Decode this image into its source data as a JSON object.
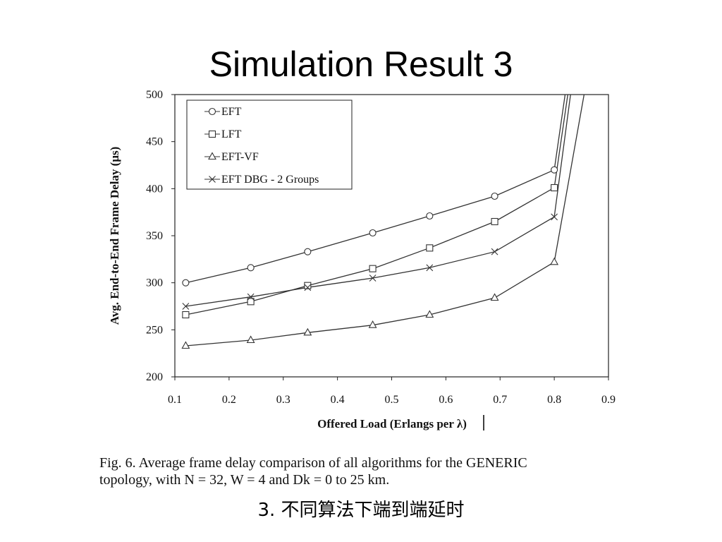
{
  "slide": {
    "title": "Simulation Result 3",
    "subtitle": "3. 不同算法下端到端延时"
  },
  "caption": {
    "line1": "Fig. 6.   Average frame delay comparison of all algorithms for the GENERIC",
    "line2": "topology, with N = 32, W = 4 and Dk = 0 to 25 km."
  },
  "chart_data": {
    "type": "line",
    "title": "",
    "xlabel": "Offered Load (Erlangs per λ)",
    "ylabel": "Avg. End-to-End Frame Delay (μs)",
    "xlim": [
      0.1,
      0.9
    ],
    "ylim": [
      200,
      500
    ],
    "xticks": [
      "0.1",
      "0.2",
      "0.3",
      "0.4",
      "0.5",
      "0.6",
      "0.7",
      "0.8",
      "0.9"
    ],
    "yticks": [
      "200",
      "250",
      "300",
      "350",
      "400",
      "450",
      "500"
    ],
    "grid": false,
    "legend_position": "top-left",
    "series": [
      {
        "name": "EFT",
        "marker": "circle",
        "x": [
          0.12,
          0.24,
          0.345,
          0.465,
          0.57,
          0.69,
          0.8,
          0.82
        ],
        "y": [
          300,
          316,
          333,
          353,
          371,
          392,
          420,
          500
        ]
      },
      {
        "name": "LFT",
        "marker": "square",
        "x": [
          0.12,
          0.24,
          0.345,
          0.465,
          0.57,
          0.69,
          0.8,
          0.825
        ],
        "y": [
          266,
          280,
          297,
          315,
          337,
          365,
          401,
          500
        ]
      },
      {
        "name": "EFT-VF",
        "marker": "triangle",
        "x": [
          0.12,
          0.24,
          0.345,
          0.465,
          0.57,
          0.69,
          0.8,
          0.855
        ],
        "y": [
          233,
          239,
          247,
          255,
          266,
          284,
          322,
          500
        ]
      },
      {
        "name": "EFT DBG - 2 Groups",
        "marker": "x",
        "x": [
          0.12,
          0.24,
          0.345,
          0.465,
          0.57,
          0.69,
          0.8,
          0.83
        ],
        "y": [
          275,
          285,
          295,
          305,
          316,
          333,
          370,
          500
        ]
      }
    ]
  }
}
